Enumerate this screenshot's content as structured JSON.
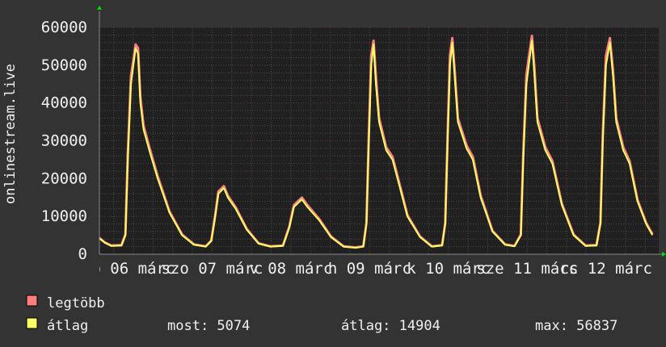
{
  "chart_data": {
    "type": "line",
    "ylabel": "onlinestream.live",
    "ylim": [
      0,
      60000
    ],
    "yticks": [
      0,
      10000,
      20000,
      30000,
      40000,
      50000,
      60000
    ],
    "xlim": [
      6.07,
      13.17
    ],
    "x_unit": "day of March",
    "xtick_positions": [
      6.5,
      7.5,
      8.5,
      9.5,
      10.5,
      11.5,
      12.5
    ],
    "xtick_labels": [
      "p 06 márc",
      "szo 07 márc",
      "v 08 márc",
      "h 09 márc",
      "k 10 márc",
      "sze 11 márc",
      "cs 12 márc"
    ],
    "grid": true,
    "x": [
      6.07,
      6.14,
      6.22,
      6.35,
      6.4,
      6.43,
      6.47,
      6.53,
      6.56,
      6.59,
      6.63,
      6.71,
      6.81,
      6.96,
      7.12,
      7.27,
      7.42,
      7.49,
      7.54,
      7.58,
      7.65,
      7.7,
      7.8,
      7.94,
      8.09,
      8.24,
      8.4,
      8.48,
      8.54,
      8.64,
      8.71,
      8.86,
      9.01,
      9.17,
      9.32,
      9.42,
      9.46,
      9.49,
      9.52,
      9.55,
      9.58,
      9.62,
      9.71,
      9.79,
      9.88,
      9.98,
      10.14,
      10.29,
      10.42,
      10.46,
      10.49,
      10.52,
      10.55,
      10.58,
      10.62,
      10.73,
      10.81,
      10.91,
      11.06,
      11.22,
      11.34,
      11.42,
      11.45,
      11.49,
      11.56,
      11.59,
      11.63,
      11.73,
      11.82,
      11.94,
      12.09,
      12.24,
      12.38,
      12.43,
      12.46,
      12.5,
      12.55,
      12.59,
      12.63,
      12.72,
      12.8,
      12.9,
      13.01,
      13.09
    ],
    "series": [
      {
        "name": "legtöbb",
        "color": "#ff7f7f",
        "values": [
          4300,
          3100,
          2300,
          2400,
          5300,
          26500,
          47000,
          55500,
          54500,
          41500,
          34000,
          27800,
          20600,
          11300,
          5200,
          2600,
          2100,
          3600,
          10400,
          16600,
          18000,
          15500,
          12400,
          6700,
          2900,
          2100,
          2300,
          7300,
          13000,
          15000,
          13000,
          9300,
          4700,
          2100,
          1800,
          2100,
          8400,
          31500,
          52500,
          56500,
          47000,
          36000,
          28300,
          25800,
          18600,
          10300,
          4700,
          2100,
          2400,
          8400,
          31500,
          52500,
          57200,
          48500,
          36000,
          28800,
          25800,
          15500,
          6200,
          2600,
          2200,
          5200,
          26500,
          47500,
          57800,
          50000,
          36000,
          28300,
          24700,
          13400,
          5200,
          2300,
          2400,
          8400,
          31500,
          52500,
          57200,
          48500,
          36000,
          28300,
          24700,
          14400,
          8300,
          5300
        ]
      },
      {
        "name": "átlag",
        "color": "#ffff66",
        "values": [
          4200,
          3000,
          2200,
          2300,
          5000,
          25000,
          45000,
          54500,
          53000,
          40000,
          33000,
          27000,
          20000,
          11000,
          5000,
          2500,
          2000,
          3500,
          10000,
          16000,
          17500,
          15000,
          12000,
          6500,
          2800,
          2000,
          2200,
          7000,
          12500,
          14500,
          12500,
          9000,
          4500,
          2000,
          1700,
          2000,
          8000,
          30000,
          50000,
          55500,
          45000,
          35000,
          27500,
          25000,
          18000,
          10000,
          4500,
          2000,
          2300,
          8000,
          30000,
          50000,
          56000,
          47000,
          35000,
          28000,
          25000,
          15000,
          6000,
          2500,
          2100,
          5000,
          25000,
          45000,
          56500,
          48000,
          35000,
          27500,
          24000,
          13000,
          5000,
          2200,
          2300,
          8000,
          30000,
          50000,
          56000,
          47000,
          35000,
          27500,
          24000,
          14000,
          8000,
          5074
        ]
      }
    ]
  },
  "legend": [
    {
      "label": "legtöbb",
      "color": "#ff7f7f"
    },
    {
      "label": "átlag",
      "color": "#ffff66"
    }
  ],
  "stats": {
    "now": "most: 5074",
    "avg": "átlag: 14904",
    "max": "max: 56837"
  }
}
